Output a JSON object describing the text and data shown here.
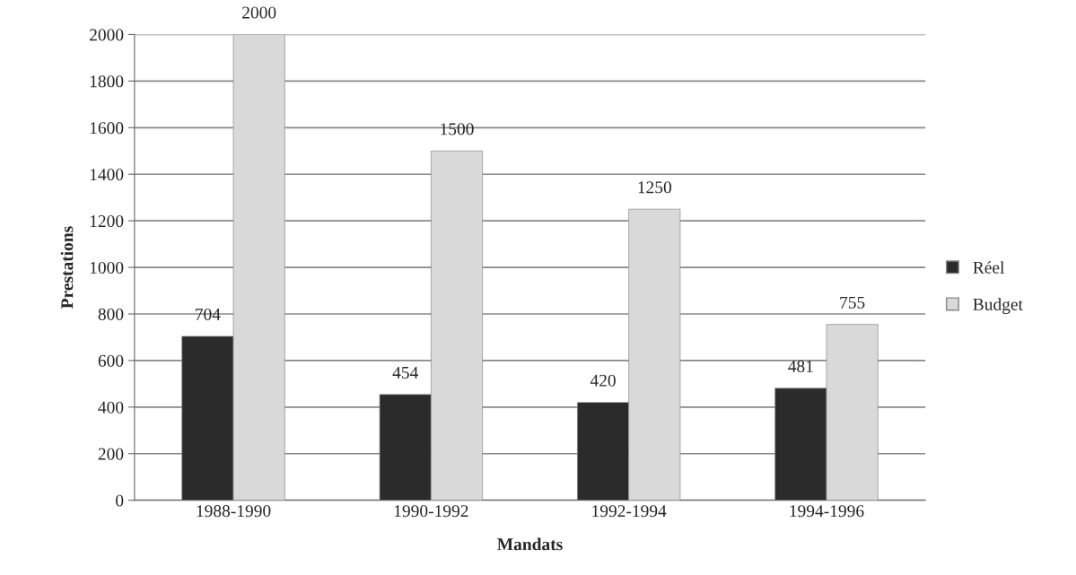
{
  "chart_data": {
    "type": "bar",
    "xlabel": "Mandats",
    "ylabel": "Prestations",
    "categories": [
      "1988-1990",
      "1990-1992",
      "1992-1994",
      "1994-1996"
    ],
    "series": [
      {
        "name": "Réel",
        "color": "#2b2b2b",
        "values": [
          704,
          454,
          420,
          481
        ]
      },
      {
        "name": "Budget",
        "color": "#d9d9d9",
        "values": [
          2000,
          1500,
          1250,
          755
        ]
      }
    ],
    "ylim": [
      0,
      2000
    ],
    "yticks": [
      0,
      200,
      400,
      600,
      800,
      1000,
      1200,
      1400,
      1600,
      1800,
      2000
    ],
    "grid": "y",
    "legend": "right",
    "data_labels": true
  }
}
